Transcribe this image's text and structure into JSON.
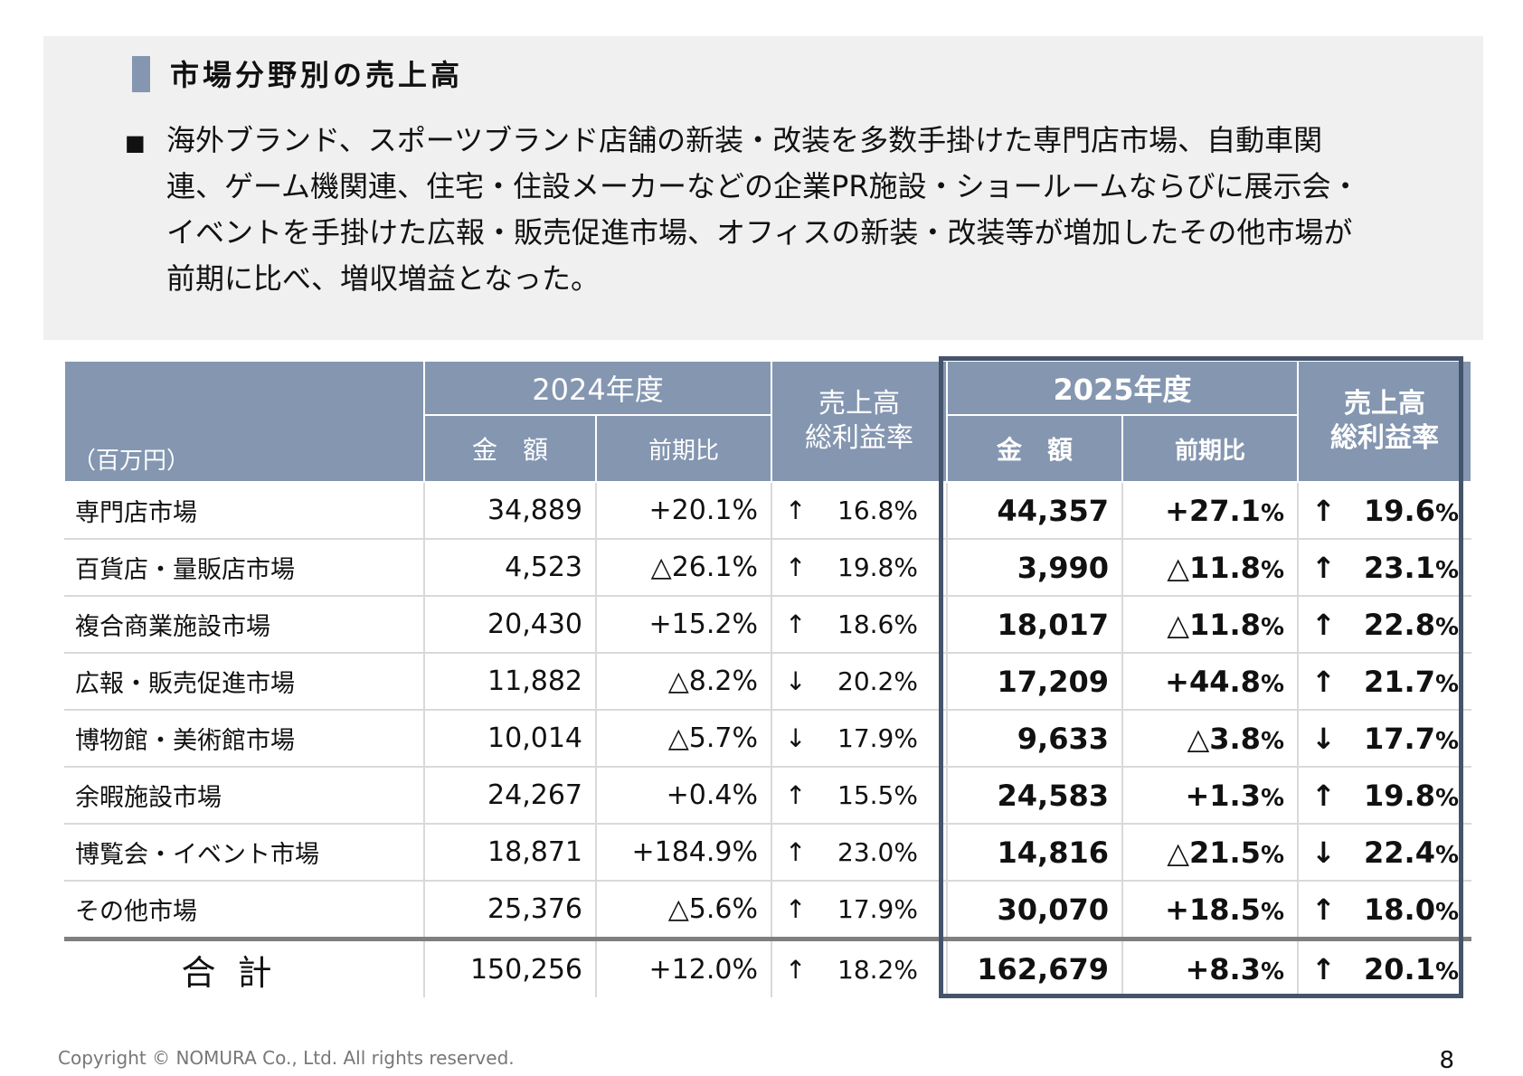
{
  "title": "市場分野別の売上高",
  "bullet": "■",
  "summary_lines": [
    "海外ブランド、スポーツブランド店舗の新装・改装を多数手掛けた専門店市場、自動車関",
    "連、ゲーム機関連、住宅・住設メーカーなどの企業PR施設・ショールームならびに展示会・",
    "イベントを手掛けた広報・販売促進市場、オフィスの新装・改装等が増加したその他市場が",
    "前期に比べ、増収増益となった。"
  ],
  "table": {
    "unit": "（百万円）",
    "year_prev": "2024年度",
    "year_curr": "2025年度",
    "col_amount": "金　額",
    "col_yoy": "前期比",
    "col_rate_1": "売上高",
    "col_rate_2": "総利益率",
    "rows": [
      {
        "name": "専門店市場",
        "a24": "34,889",
        "y24": "+20.1%",
        "ar24": "↑",
        "r24": "16.8%",
        "a25": "44,357",
        "y25": "+27.1",
        "ar25": "↑",
        "r25": "19.6"
      },
      {
        "name": "百貨店・量販店市場",
        "a24": "4,523",
        "y24": "△26.1%",
        "ar24": "↑",
        "r24": "19.8%",
        "a25": "3,990",
        "y25": "△11.8",
        "ar25": "↑",
        "r25": "23.1"
      },
      {
        "name": "複合商業施設市場",
        "a24": "20,430",
        "y24": "+15.2%",
        "ar24": "↑",
        "r24": "18.6%",
        "a25": "18,017",
        "y25": "△11.8",
        "ar25": "↑",
        "r25": "22.8"
      },
      {
        "name": "広報・販売促進市場",
        "a24": "11,882",
        "y24": "△8.2%",
        "ar24": "↓",
        "r24": "20.2%",
        "a25": "17,209",
        "y25": "+44.8",
        "ar25": "↑",
        "r25": "21.7"
      },
      {
        "name": "博物館・美術館市場",
        "a24": "10,014",
        "y24": "△5.7%",
        "ar24": "↓",
        "r24": "17.9%",
        "a25": "9,633",
        "y25": "△3.8",
        "ar25": "↓",
        "r25": "17.7"
      },
      {
        "name": "余暇施設市場",
        "a24": "24,267",
        "y24": "+0.4%",
        "ar24": "↑",
        "r24": "15.5%",
        "a25": "24,583",
        "y25": "+1.3",
        "ar25": "↑",
        "r25": "19.8"
      },
      {
        "name": "博覧会・イベント市場",
        "a24": "18,871",
        "y24": "+184.9%",
        "ar24": "↑",
        "r24": "23.0%",
        "a25": "14,816",
        "y25": "△21.5",
        "ar25": "↓",
        "r25": "22.4"
      },
      {
        "name": "その他市場",
        "a24": "25,376",
        "y24": "△5.6%",
        "ar24": "↑",
        "r24": "17.9%",
        "a25": "30,070",
        "y25": "+18.5",
        "ar25": "↑",
        "r25": "18.0"
      }
    ],
    "total": {
      "name": "合計",
      "a24": "150,256",
      "y24": "+12.0%",
      "ar24": "↑",
      "r24": "18.2%",
      "a25": "162,679",
      "y25": "+8.3",
      "ar25": "↑",
      "r25": "20.1"
    },
    "pct": "%"
  },
  "footer": "Copyright © NOMURA Co., Ltd. All rights reserved.",
  "page_number": "8"
}
